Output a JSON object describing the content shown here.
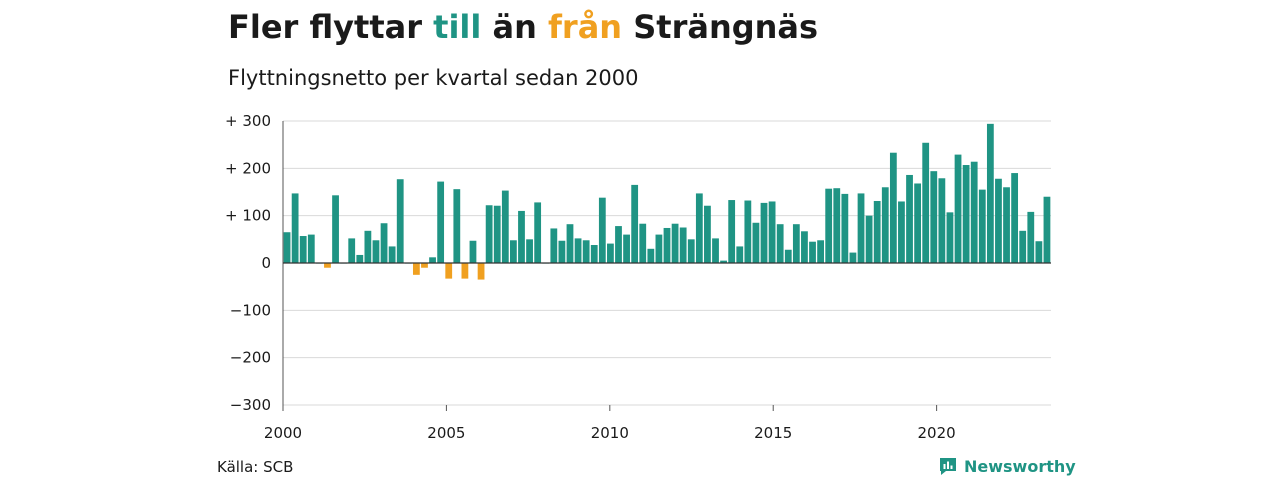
{
  "title": {
    "part1": "Fler flyttar ",
    "word_in": "till",
    "part2": " än ",
    "word_out": "från",
    "part3": " Strängnäs"
  },
  "subtitle": "Flyttningsnetto per kvartal sedan 2000",
  "source": "Källa: SCB",
  "brand": {
    "name": "Newsworthy",
    "icon": "newsworthy-logo-icon"
  },
  "colors": {
    "positive": "#1f9484",
    "negative": "#f0a020",
    "grid": "#d9d9d9",
    "text": "#1a1a1a"
  },
  "chart_data": {
    "type": "bar",
    "xlabel": "",
    "ylabel": "",
    "ylim": [
      -300,
      300
    ],
    "y_ticks": [
      {
        "value": 300,
        "label": "+ 300"
      },
      {
        "value": 200,
        "label": "+ 200"
      },
      {
        "value": 100,
        "label": "+ 100"
      },
      {
        "value": 0,
        "label": "0"
      },
      {
        "value": -100,
        "label": "−100"
      },
      {
        "value": -200,
        "label": "−200"
      },
      {
        "value": -300,
        "label": "−300"
      }
    ],
    "x_ticks": [
      {
        "year": 2000,
        "label": "2000"
      },
      {
        "year": 2005,
        "label": "2005"
      },
      {
        "year": 2010,
        "label": "2010"
      },
      {
        "year": 2015,
        "label": "2015"
      },
      {
        "year": 2020,
        "label": "2020"
      }
    ],
    "x_range": [
      2000,
      2023.5
    ],
    "grid": true,
    "start_quarter": "2000 Q1",
    "values": [
      65,
      147,
      57,
      60,
      0,
      -10,
      143,
      0,
      52,
      17,
      68,
      48,
      84,
      35,
      177,
      0,
      -25,
      -10,
      12,
      172,
      -33,
      156,
      -33,
      47,
      -35,
      122,
      121,
      153,
      48,
      110,
      50,
      128,
      0,
      73,
      47,
      82,
      52,
      48,
      38,
      138,
      41,
      78,
      60,
      165,
      83,
      30,
      60,
      74,
      83,
      75,
      50,
      147,
      121,
      52,
      5,
      133,
      35,
      132,
      85,
      127,
      130,
      82,
      28,
      82,
      67,
      45,
      48,
      157,
      158,
      146,
      22,
      147,
      100,
      131,
      160,
      233,
      130,
      186,
      168,
      254,
      194,
      179,
      107,
      229,
      207,
      214,
      155,
      294,
      178,
      160,
      190,
      68,
      108,
      46,
      140
    ]
  }
}
